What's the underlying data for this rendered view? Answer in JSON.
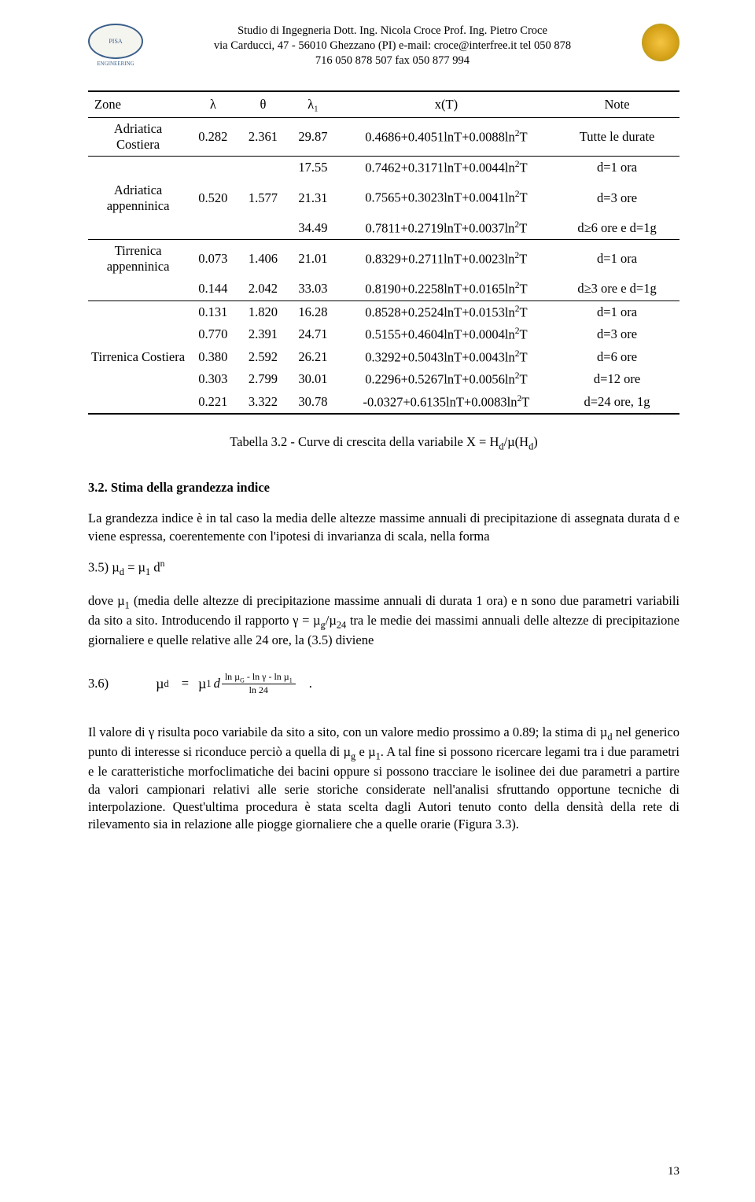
{
  "header": {
    "line1": "Studio di Ingegneria Dott. Ing. Nicola Croce Prof. Ing. Pietro Croce",
    "line2": "via Carducci, 47 - 56010 Ghezzano (PI)  e-mail: croce@interfree.it tel 050 878",
    "line3": "716  050 878 507   fax 050 877 994",
    "logo_left_top": "STUDIO CROCE",
    "logo_left_mid": "PISA",
    "logo_left_bottom": "ENGINEERING"
  },
  "table": {
    "headers": {
      "zone": "Zone",
      "lambda": "λ",
      "theta": "θ",
      "lambda1": "λ₁",
      "xT": "x(T)",
      "note": "Note"
    },
    "rows": [
      {
        "zone": "Adriatica Costiera",
        "lambda": "0.282",
        "theta": "2.361",
        "lambda1": "29.87",
        "formula": "0.4686+0.4051lnT+0.0088ln²T",
        "note": "Tutte le durate",
        "border": true
      },
      {
        "zone": "",
        "lambda": "",
        "theta": "",
        "lambda1": "17.55",
        "formula": "0.7462+0.3171lnT+0.0044ln²T",
        "note": "d=1 ora",
        "border": true
      },
      {
        "zone": "Adriatica appenninica",
        "lambda": "0.520",
        "theta": "1.577",
        "lambda1": "21.31",
        "formula": "0.7565+0.3023lnT+0.0041ln²T",
        "note": "d=3 ore",
        "border": false
      },
      {
        "zone": "",
        "lambda": "",
        "theta": "",
        "lambda1": "34.49",
        "formula": "0.7811+0.2719lnT+0.0037ln²T",
        "note": "d≥6 ore e d=1g",
        "border": false
      },
      {
        "zone": "Tirrenica appenninica",
        "lambda": "0.073",
        "theta": "1.406",
        "lambda1": "21.01",
        "formula": "0.8329+0.2711lnT+0.0023ln²T",
        "note": "d=1 ora",
        "border": true
      },
      {
        "zone": "",
        "lambda": "0.144",
        "theta": "2.042",
        "lambda1": "33.03",
        "formula": "0.8190+0.2258lnT+0.0165ln²T",
        "note": "d≥3 ore e d=1g",
        "border": false
      },
      {
        "zone": "",
        "lambda": "0.131",
        "theta": "1.820",
        "lambda1": "16.28",
        "formula": "0.8528+0.2524lnT+0.0153ln²T",
        "note": "d=1 ora",
        "border": true
      },
      {
        "zone": "",
        "lambda": "0.770",
        "theta": "2.391",
        "lambda1": "24.71",
        "formula": "0.5155+0.4604lnT+0.0004ln²T",
        "note": "d=3 ore",
        "border": false
      },
      {
        "zone": "Tirrenica Costiera",
        "lambda": "0.380",
        "theta": "2.592",
        "lambda1": "26.21",
        "formula": "0.3292+0.5043lnT+0.0043ln²T",
        "note": "d=6 ore",
        "border": false
      },
      {
        "zone": "",
        "lambda": "0.303",
        "theta": "2.799",
        "lambda1": "30.01",
        "formula": "0.2296+0.5267lnT+0.0056ln²T",
        "note": "d=12 ore",
        "border": false
      },
      {
        "zone": "",
        "lambda": "0.221",
        "theta": "3.322",
        "lambda1": "30.78",
        "formula": "-0.0327+0.6135lnT+0.0083ln²T",
        "note": "d=24 ore, 1g",
        "border": false
      }
    ]
  },
  "caption": "Tabella 3.2 - Curve di crescita della variabile X = H",
  "caption_sub": "d",
  "caption_rest": "/µ(H",
  "caption_sub2": "d",
  "caption_end": ")",
  "section": {
    "heading": "3.2. Stima della grandezza indice",
    "para1": "La grandezza indice è in tal caso la media delle altezze massime annuali di precipitazione di assegnata durata d e viene espressa, coerentemente con l'ipotesi di invarianza di scala, nella forma",
    "formula35_label": "3.5)  ",
    "formula35": "µ",
    "formula35_d": "d",
    "formula35_eq": " = µ",
    "formula35_1": "1",
    "formula35_dn": " d",
    "formula35_n": "n",
    "para2a": "dove  µ",
    "para2a_sub": "1",
    "para2b": " (media delle altezze di precipitazione massime annuali di durata 1 ora) e n   sono due parametri variabili da sito a sito. Introducendo il rapporto γ = µ",
    "para2b_sub": "g",
    "para2c": "/µ",
    "para2c_sub": "24",
    "para2d": "   tra le medie dei massimi annuali delle altezze di precipitazione giornaliere e quelle relative alle 24 ore, la (3.5) diviene",
    "formula36_label": "3.6)",
    "para3a": "Il valore di γ risulta poco variabile da sito a sito, con un valore medio prossimo a 0.89; la stima di µ",
    "para3a_sub": "d",
    "para3b": "   nel generico punto di interesse si riconduce perciò a quella di µ",
    "para3b_sub": "g",
    "para3c": " e µ",
    "para3c_sub": "1",
    "para3d": ". A tal fine si possono ricercare legami tra i due parametri e le caratteristiche morfoclimatiche dei bacini oppure si possono tracciare le isolinee dei due parametri a partire da valori campionari relativi alle serie storiche considerate nell'analisi sfruttando opportune tecniche di interpolazione. Quest'ultima procedura è stata scelta dagli Autori tenuto conto della densità della rete di rilevamento sia in relazione alle piogge giornaliere che a quelle orarie (Figura 3.3)."
  },
  "page_number": "13",
  "colors": {
    "text": "#000000",
    "bg": "#ffffff",
    "logo_blue": "#3a5f8a"
  }
}
